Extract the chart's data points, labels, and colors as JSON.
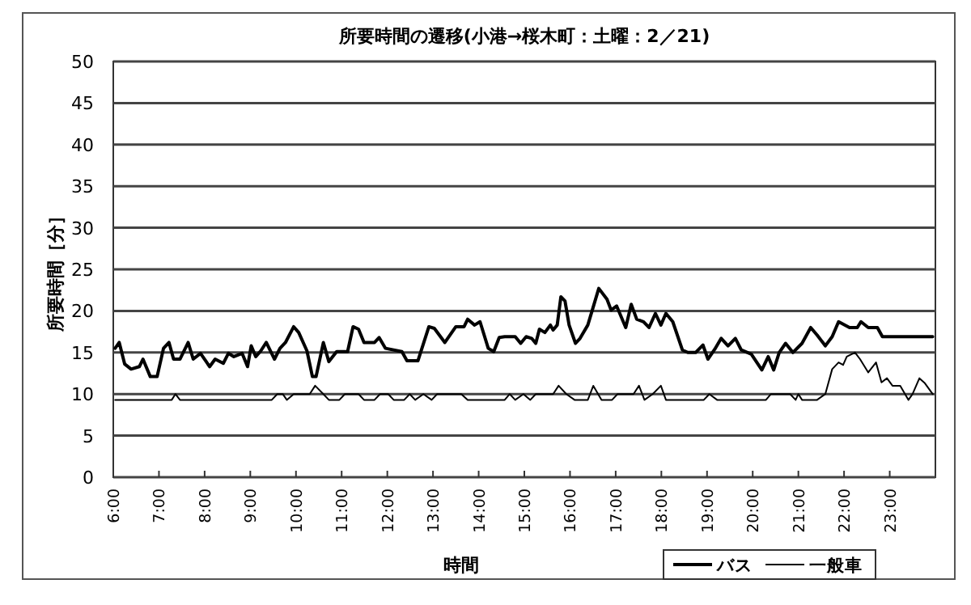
{
  "chart_data": {
    "type": "line",
    "title": "所要時間の遷移(小港→桜木町：土曜：2／21)",
    "xlabel": "時間",
    "ylabel": "所要時間［分］",
    "xlim": [
      6,
      24
    ],
    "ylim": [
      0,
      50
    ],
    "xticks": [
      {
        "value": 6,
        "label": "6:00"
      },
      {
        "value": 7,
        "label": "7:00"
      },
      {
        "value": 8,
        "label": "8:00"
      },
      {
        "value": 9,
        "label": "9:00"
      },
      {
        "value": 10,
        "label": "10:00"
      },
      {
        "value": 11,
        "label": "11:00"
      },
      {
        "value": 12,
        "label": "12:00"
      },
      {
        "value": 13,
        "label": "13:00"
      },
      {
        "value": 14,
        "label": "14:00"
      },
      {
        "value": 15,
        "label": "15:00"
      },
      {
        "value": 16,
        "label": "16:00"
      },
      {
        "value": 17,
        "label": "17:00"
      },
      {
        "value": 18,
        "label": "18:00"
      },
      {
        "value": 19,
        "label": "19:00"
      },
      {
        "value": 20,
        "label": "20:00"
      },
      {
        "value": 21,
        "label": "21:00"
      },
      {
        "value": 22,
        "label": "22:00"
      },
      {
        "value": 23,
        "label": "23:00"
      }
    ],
    "yticks": [
      0,
      5,
      10,
      15,
      20,
      25,
      30,
      35,
      40,
      45,
      50
    ],
    "grid": "y",
    "legend": "bottom right",
    "series": [
      {
        "name": "バス",
        "color": "#000000",
        "x": [
          6.04,
          6.13,
          6.25,
          6.39,
          6.57,
          6.65,
          6.81,
          6.96,
          7.1,
          7.22,
          7.32,
          7.46,
          7.64,
          7.75,
          7.91,
          8.11,
          8.23,
          8.41,
          8.52,
          8.64,
          8.82,
          8.94,
          9.02,
          9.12,
          9.23,
          9.35,
          9.53,
          9.65,
          9.77,
          9.95,
          10.06,
          10.24,
          10.36,
          10.44,
          10.6,
          10.72,
          10.89,
          11.13,
          11.25,
          11.37,
          11.49,
          11.72,
          11.82,
          11.96,
          12.32,
          12.43,
          12.67,
          12.91,
          13.03,
          13.26,
          13.5,
          13.68,
          13.76,
          13.91,
          14.03,
          14.21,
          14.33,
          14.45,
          14.57,
          14.8,
          14.92,
          15.04,
          15.16,
          15.25,
          15.33,
          15.45,
          15.57,
          15.63,
          15.72,
          15.8,
          15.89,
          15.98,
          16.12,
          16.22,
          16.39,
          16.63,
          16.81,
          16.9,
          17.02,
          17.22,
          17.34,
          17.46,
          17.61,
          17.73,
          17.87,
          17.99,
          18.1,
          18.25,
          18.46,
          18.58,
          18.75,
          18.91,
          19.02,
          19.17,
          19.31,
          19.46,
          19.62,
          19.75,
          19.97,
          20.2,
          20.34,
          20.46,
          20.58,
          20.72,
          20.88,
          21.08,
          21.27,
          21.41,
          21.59,
          21.74,
          21.88,
          22.12,
          22.29,
          22.37,
          22.53,
          22.73,
          22.84,
          23.94
        ],
        "values": [
          15.5,
          16.2,
          13.6,
          13,
          13.3,
          14.2,
          12.1,
          12.1,
          15.5,
          16.2,
          14.2,
          14.2,
          16.2,
          14.2,
          14.9,
          13.3,
          14.2,
          13.7,
          14.9,
          14.5,
          14.9,
          13.3,
          15.8,
          14.5,
          15.2,
          16.2,
          14.2,
          15.5,
          16.2,
          18.1,
          17.4,
          15.2,
          12.1,
          12.1,
          16.2,
          13.9,
          15.1,
          15.1,
          18.1,
          17.8,
          16.2,
          16.2,
          16.8,
          15.5,
          15.1,
          14,
          14,
          18.1,
          17.9,
          16.2,
          18.1,
          18.1,
          19,
          18.3,
          18.7,
          15.5,
          15.1,
          16.8,
          16.9,
          16.9,
          16.1,
          16.9,
          16.7,
          16.1,
          17.8,
          17.4,
          18.3,
          17.7,
          18.3,
          21.7,
          21.2,
          18.3,
          16.1,
          16.7,
          18.3,
          22.7,
          21.4,
          20.1,
          20.6,
          18,
          20.8,
          19,
          18.7,
          18,
          19.7,
          18.3,
          19.7,
          18.7,
          15.3,
          15,
          15,
          15.9,
          14.2,
          15.4,
          16.7,
          15.8,
          16.7,
          15.3,
          14.8,
          12.9,
          14.5,
          12.9,
          15,
          16.1,
          15,
          16.1,
          18,
          17.1,
          15.8,
          16.9,
          18.7,
          18,
          18,
          18.7,
          18,
          18,
          16.9,
          16.9
        ]
      },
      {
        "name": "一般車",
        "color": "#000000",
        "x": [
          6.04,
          7.28,
          7.36,
          7.46,
          9.47,
          9.59,
          9.71,
          9.8,
          9.95,
          10.3,
          10.42,
          10.6,
          10.72,
          10.95,
          11.07,
          11.37,
          11.49,
          11.72,
          11.84,
          12.02,
          12.14,
          12.37,
          12.49,
          12.61,
          12.79,
          12.97,
          13.09,
          13.62,
          13.76,
          14.57,
          14.68,
          14.8,
          14.98,
          15.13,
          15.25,
          15.63,
          15.75,
          15.92,
          16.1,
          16.39,
          16.51,
          16.69,
          16.92,
          17.04,
          17.39,
          17.51,
          17.63,
          17.81,
          17.99,
          18.1,
          18.93,
          19.05,
          19.22,
          20.29,
          20.4,
          20.82,
          20.94,
          21,
          21.08,
          21.41,
          21.59,
          21.74,
          21.88,
          21.98,
          22.06,
          22.24,
          22.35,
          22.53,
          22.7,
          22.82,
          22.94,
          23.06,
          23.23,
          23.41,
          23.5,
          23.65,
          23.77,
          23.94
        ],
        "values": [
          9.3,
          9.3,
          10,
          9.3,
          9.3,
          10,
          10,
          9.3,
          10,
          10,
          11,
          10,
          9.3,
          9.3,
          10,
          10,
          9.3,
          9.3,
          10,
          10,
          9.3,
          9.3,
          10,
          9.3,
          10,
          9.3,
          10,
          10,
          9.3,
          9.3,
          10,
          9.3,
          10,
          9.3,
          10,
          10,
          11,
          10,
          9.3,
          9.3,
          11,
          9.3,
          9.3,
          10,
          10,
          11,
          9.3,
          10,
          11,
          9.3,
          9.3,
          10,
          9.3,
          9.3,
          10,
          10,
          9.3,
          10,
          9.3,
          9.3,
          10,
          13,
          13.8,
          13.5,
          14.5,
          15,
          14.2,
          12.6,
          13.8,
          11.4,
          11.9,
          11,
          11,
          9.3,
          10,
          11.9,
          11.3,
          10
        ]
      }
    ]
  }
}
